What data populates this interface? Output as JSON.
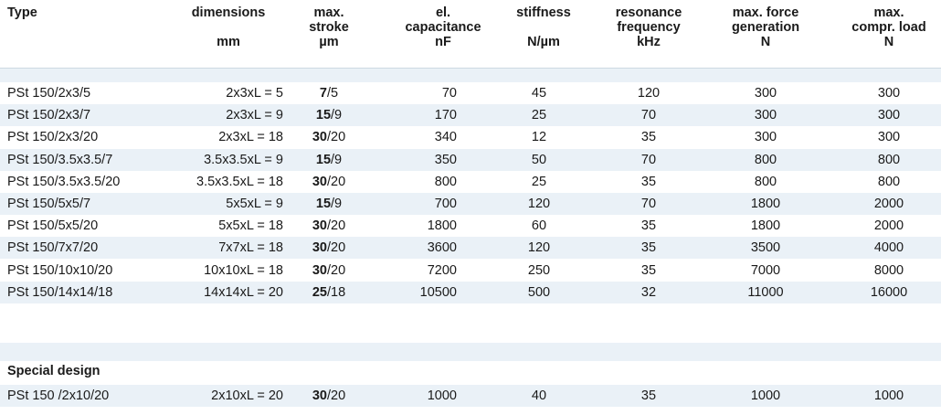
{
  "header": {
    "type": "Type",
    "dimensions": [
      "dimensions",
      "",
      "mm"
    ],
    "stroke": [
      "max.",
      "stroke",
      "µm"
    ],
    "capacitance": [
      "el.",
      "capacitance",
      "nF"
    ],
    "stiffness": [
      "stiffness",
      "",
      "N/µm"
    ],
    "frequency": [
      "resonance",
      "frequency",
      "kHz"
    ],
    "force": [
      "max. force",
      "generation",
      "N"
    ],
    "load": [
      "max.",
      "compr. load",
      "N"
    ]
  },
  "rows": [
    {
      "type": "PSt 150/2x3/5",
      "dim": "2x3xL = 5",
      "stroke_bold": "7",
      "stroke_rest": "/5",
      "cap": "70",
      "stiff": "45",
      "freq": "120",
      "force": "300",
      "load": "300"
    },
    {
      "type": "PSt 150/2x3/7",
      "dim": "2x3xL = 9",
      "stroke_bold": "15",
      "stroke_rest": "/9",
      "cap": "170",
      "stiff": "25",
      "freq": "70",
      "force": "300",
      "load": "300"
    },
    {
      "type": "PSt 150/2x3/20",
      "dim": "2x3xL = 18",
      "stroke_bold": "30",
      "stroke_rest": "/20",
      "cap": "340",
      "stiff": "12",
      "freq": "35",
      "force": "300",
      "load": "300"
    },
    {
      "type": "PSt 150/3.5x3.5/7",
      "dim": "3.5x3.5xL = 9",
      "stroke_bold": "15",
      "stroke_rest": "/9",
      "cap": "350",
      "stiff": "50",
      "freq": "70",
      "force": "800",
      "load": "800"
    },
    {
      "type": "PSt 150/3.5x3.5/20",
      "dim": "3.5x3.5xL = 18",
      "stroke_bold": "30",
      "stroke_rest": "/20",
      "cap": "800",
      "stiff": "25",
      "freq": "35",
      "force": "800",
      "load": "800"
    },
    {
      "type": "PSt 150/5x5/7",
      "dim": "5x5xL = 9",
      "stroke_bold": "15",
      "stroke_rest": "/9",
      "cap": "700",
      "stiff": "120",
      "freq": "70",
      "force": "1800",
      "load": "2000"
    },
    {
      "type": "PSt 150/5x5/20",
      "dim": "5x5xL = 18",
      "stroke_bold": "30",
      "stroke_rest": "/20",
      "cap": "1800",
      "stiff": "60",
      "freq": "35",
      "force": "1800",
      "load": "2000"
    },
    {
      "type": "PSt 150/7x7/20",
      "dim": "7x7xL = 18",
      "stroke_bold": "30",
      "stroke_rest": "/20",
      "cap": "3600",
      "stiff": "120",
      "freq": "35",
      "force": "3500",
      "load": "4000"
    },
    {
      "type": "PSt 150/10x10/20",
      "dim": "10x10xL = 18",
      "stroke_bold": "30",
      "stroke_rest": "/20",
      "cap": "7200",
      "stiff": "250",
      "freq": "35",
      "force": "7000",
      "load": "8000"
    },
    {
      "type": "PSt 150/14x14/18",
      "dim": "14x14xL = 20",
      "stroke_bold": "25",
      "stroke_rest": "/18",
      "cap": "10500",
      "stiff": "500",
      "freq": "32",
      "force": "11000",
      "load": "16000"
    }
  ],
  "special": {
    "title": "Special design",
    "row": {
      "type": "PSt 150 /2x10/20",
      "dim": "2x10xL = 20",
      "stroke_bold": "30",
      "stroke_rest": "/20",
      "cap": "1000",
      "stiff": "40",
      "freq": "35",
      "force": "1000",
      "load": "1000"
    }
  }
}
